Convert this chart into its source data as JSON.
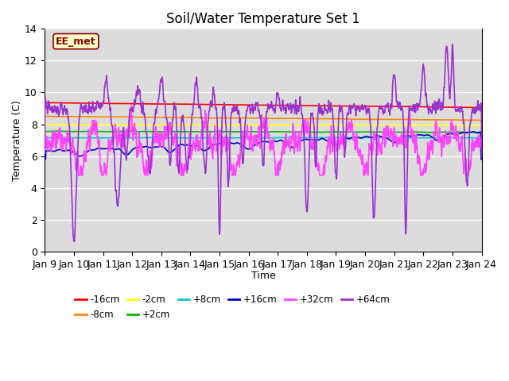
{
  "title": "Soil/Water Temperature Set 1",
  "xlabel": "Time",
  "ylabel": "Temperature (C)",
  "ylim": [
    0,
    14
  ],
  "xlim": [
    0,
    15
  ],
  "background_color": "#dcdcdc",
  "annotation_text": "EE_met",
  "annotation_facecolor": "#ffffcc",
  "annotation_edgecolor": "#8B0000",
  "annotation_textcolor": "#8B0000",
  "x_tick_labels": [
    "Jan 9",
    "Jan 10",
    "Jan 11",
    "Jan 12",
    "Jan 13",
    "Jan 14",
    "Jan 15",
    "Jan 16",
    "Jan 17",
    "Jan 18",
    "Jan 19",
    "Jan 20",
    "Jan 21",
    "Jan 22",
    "Jan 23",
    "Jan 24"
  ],
  "series_colors": {
    "-16cm": "#ff0000",
    "-8cm": "#ff8800",
    "-2cm": "#ffff00",
    "+2cm": "#00bb00",
    "+8cm": "#00cccc",
    "+16cm": "#0000cc",
    "+32cm": "#ff44ff",
    "+64cm": "#9933cc"
  },
  "series_order": [
    "-16cm",
    "-8cm",
    "-2cm",
    "+2cm",
    "+8cm",
    "+16cm",
    "+32cm",
    "+64cm"
  ]
}
